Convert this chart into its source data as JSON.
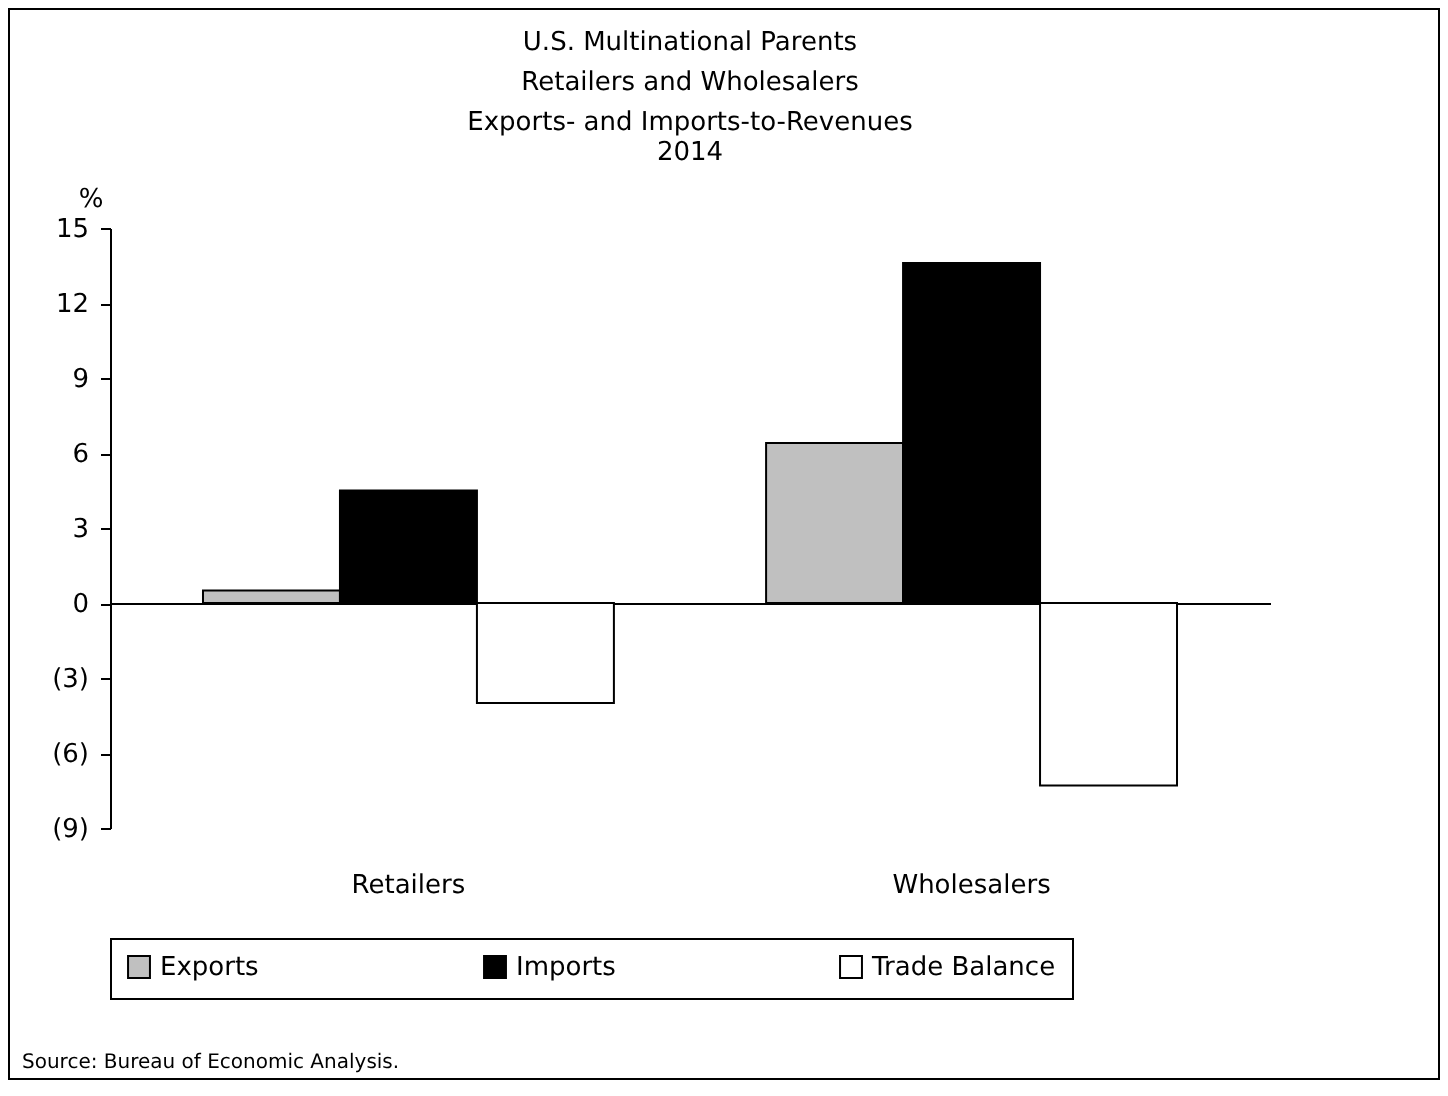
{
  "chart_data": {
    "type": "bar",
    "title": "U.S. Multinational Parents\nRetailers and Wholesalers\nExports- and Imports-to-Revenues",
    "subtitle": "2014",
    "ylabel": "%",
    "categories": [
      "Retailers",
      "Wholesalers"
    ],
    "series": [
      {
        "name": "Exports",
        "color": "#c0c0c0",
        "values": [
          0.5,
          6.4
        ]
      },
      {
        "name": "Imports",
        "color": "#000000",
        "values": [
          4.5,
          13.6
        ]
      },
      {
        "name": "Trade Balance",
        "color": "#ffffff",
        "values": [
          -4.0,
          -7.3
        ]
      }
    ],
    "ylim": [
      -9,
      15
    ],
    "yticks": [
      {
        "value": -9,
        "label": "(9)"
      },
      {
        "value": -6,
        "label": "(6)"
      },
      {
        "value": -3,
        "label": "(3)"
      },
      0,
      3,
      6,
      9,
      12,
      15
    ],
    "legend": "bottom",
    "annotations": [
      "Source: Bureau of Economic Analysis."
    ]
  }
}
